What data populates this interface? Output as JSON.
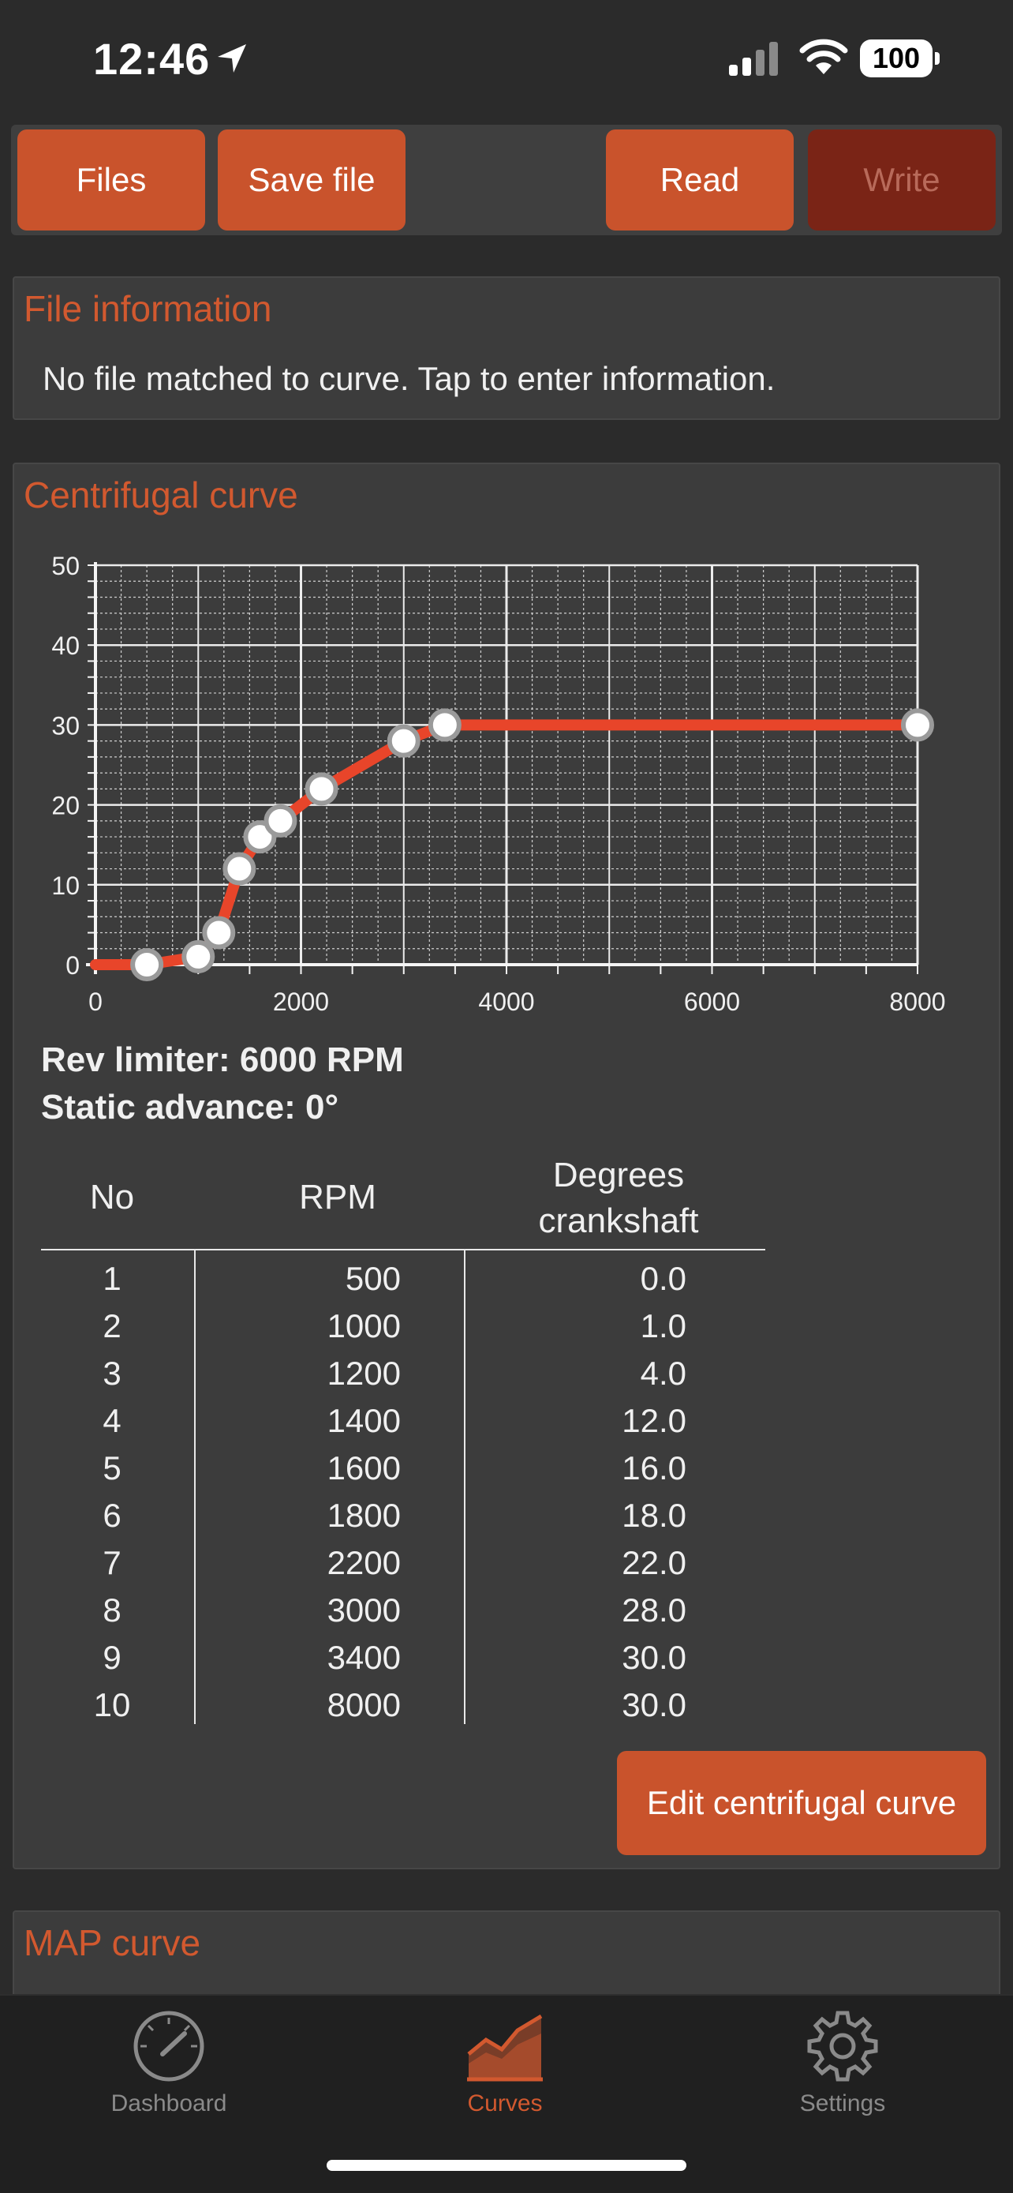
{
  "status_bar": {
    "time": "12:46",
    "battery": "100"
  },
  "toolbar": {
    "files_label": "Files",
    "save_label": "Save file",
    "read_label": "Read",
    "write_label": "Write"
  },
  "file_info": {
    "title": "File information",
    "text": "No file matched to curve. Tap to enter information."
  },
  "centrifugal": {
    "title": "Centrifugal curve",
    "rev_limiter": "Rev limiter: 6000 RPM",
    "static_advance": "Static advance: 0°",
    "table": {
      "headers": {
        "no": "No",
        "rpm": "RPM",
        "deg_line1": "Degrees",
        "deg_line2": "crankshaft"
      },
      "rows": [
        {
          "no": "1",
          "rpm": "500",
          "deg": "0.0"
        },
        {
          "no": "2",
          "rpm": "1000",
          "deg": "1.0"
        },
        {
          "no": "3",
          "rpm": "1200",
          "deg": "4.0"
        },
        {
          "no": "4",
          "rpm": "1400",
          "deg": "12.0"
        },
        {
          "no": "5",
          "rpm": "1600",
          "deg": "16.0"
        },
        {
          "no": "6",
          "rpm": "1800",
          "deg": "18.0"
        },
        {
          "no": "7",
          "rpm": "2200",
          "deg": "22.0"
        },
        {
          "no": "8",
          "rpm": "3000",
          "deg": "28.0"
        },
        {
          "no": "9",
          "rpm": "3400",
          "deg": "30.0"
        },
        {
          "no": "10",
          "rpm": "8000",
          "deg": "30.0"
        }
      ]
    },
    "edit_label": "Edit centrifugal curve"
  },
  "map_curve": {
    "title": "MAP curve"
  },
  "chart_data": {
    "type": "line",
    "x": [
      500,
      1000,
      1200,
      1400,
      1600,
      1800,
      2200,
      3000,
      3400,
      8000
    ],
    "y": [
      0,
      1,
      4,
      12,
      16,
      18,
      22,
      28,
      30,
      30
    ],
    "xlim": [
      0,
      8000
    ],
    "ylim": [
      0,
      50
    ],
    "x_ticks": [
      "0",
      "2000",
      "4000",
      "6000",
      "8000"
    ],
    "y_ticks": [
      "0",
      "10",
      "20",
      "30",
      "40",
      "50"
    ],
    "grid": true,
    "line_color": "#e8452a",
    "background": "#3c3c3c"
  },
  "tabbar": {
    "dashboard": "Dashboard",
    "curves": "Curves",
    "settings": "Settings"
  },
  "colors": {
    "accent": "#c9532c",
    "title": "#d2592f",
    "disabled": "#7a2416"
  }
}
